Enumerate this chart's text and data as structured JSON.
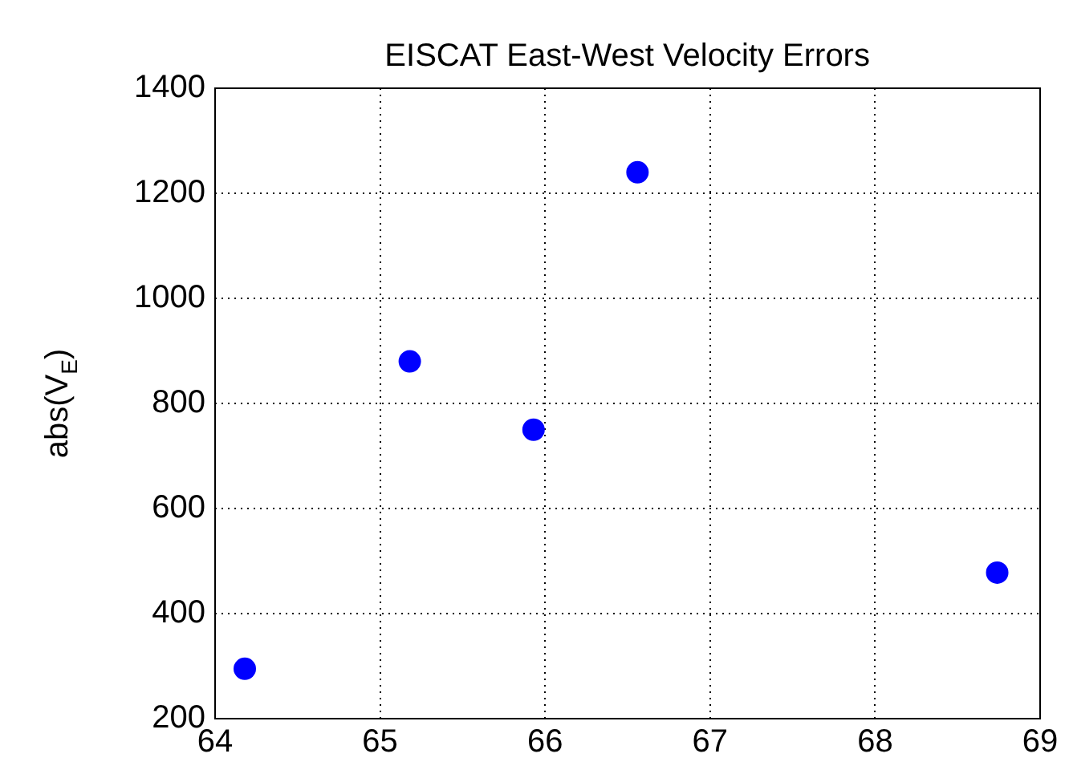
{
  "chart_data": {
    "type": "scatter",
    "title": "EISCAT East-West Velocity Errors",
    "ylabel": "abs(V$_{E}$)",
    "x": [
      64.18,
      65.18,
      65.93,
      66.56,
      68.74
    ],
    "series": [
      {
        "color": "#0000ff",
        "values": [
          295,
          880,
          750,
          1240,
          478
        ]
      }
    ],
    "xlim": [
      64,
      69
    ],
    "xticks": [
      64,
      65,
      66,
      67,
      68,
      69
    ],
    "ylim": [
      200,
      1400
    ],
    "yticks": [
      200,
      400,
      600,
      800,
      1000,
      1200,
      1400
    ],
    "grid": true,
    "marker": "circle",
    "legend": false
  }
}
